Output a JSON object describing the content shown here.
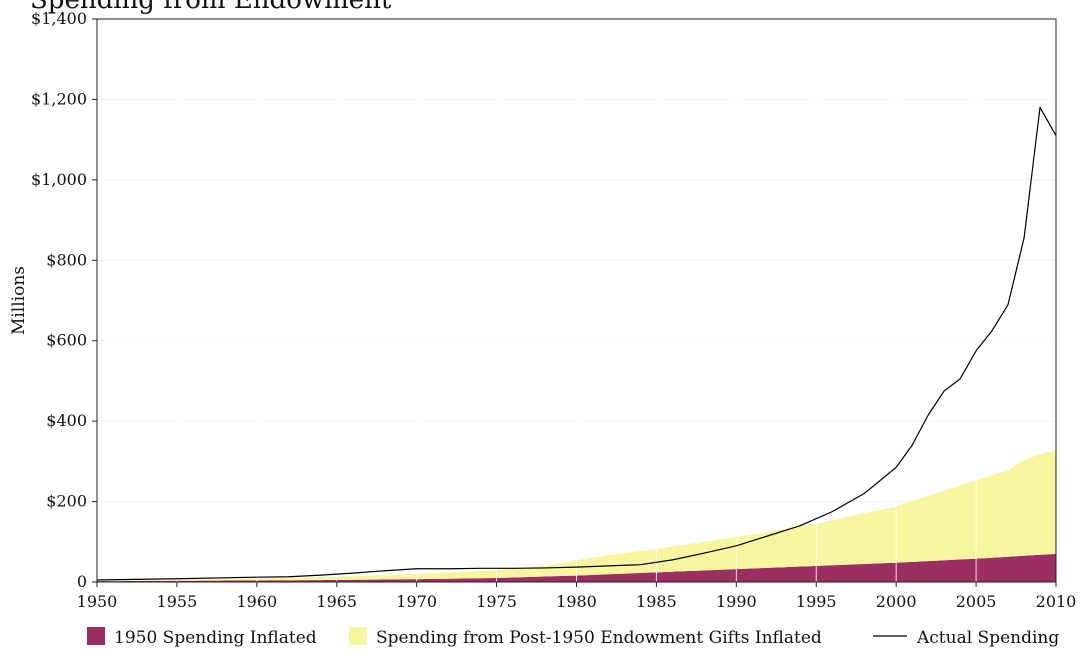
{
  "chart_data": {
    "type": "area",
    "title": "Spending from Endowment",
    "xlabel": "",
    "ylabel": "Millions",
    "xlim": [
      1950,
      2010
    ],
    "ylim": [
      0,
      1400
    ],
    "grid": true,
    "stacked": true,
    "legend_position": "bottom",
    "x_ticks": [
      {
        "value": 1950,
        "label": "1950"
      },
      {
        "value": 1955,
        "label": "1955"
      },
      {
        "value": 1960,
        "label": "1960"
      },
      {
        "value": 1965,
        "label": "1965"
      },
      {
        "value": 1970,
        "label": "1970"
      },
      {
        "value": 1975,
        "label": "1975"
      },
      {
        "value": 1980,
        "label": "1980"
      },
      {
        "value": 1985,
        "label": "1985"
      },
      {
        "value": 1990,
        "label": "1990"
      },
      {
        "value": 1995,
        "label": "1995"
      },
      {
        "value": 2000,
        "label": "2000"
      },
      {
        "value": 2005,
        "label": "2005"
      },
      {
        "value": 2010,
        "label": "2010"
      }
    ],
    "y_ticks": [
      {
        "value": 0,
        "label": "0"
      },
      {
        "value": 200,
        "label": "$200"
      },
      {
        "value": 400,
        "label": "$400"
      },
      {
        "value": 600,
        "label": "$600"
      },
      {
        "value": 800,
        "label": "$800"
      },
      {
        "value": 1000,
        "label": "$1,000"
      },
      {
        "value": 1200,
        "label": "$1,200"
      },
      {
        "value": 1400,
        "label": "$1,400"
      }
    ],
    "series": [
      {
        "name": "1950 Spending Inflated",
        "kind": "area",
        "color": "#9B2F64",
        "x": [
          1950,
          1955,
          1960,
          1965,
          1970,
          1975,
          1980,
          1985,
          1990,
          1995,
          2000,
          2005,
          2010
        ],
        "values": [
          2,
          3,
          4,
          5,
          7,
          10,
          16,
          24,
          32,
          40,
          48,
          58,
          70
        ]
      },
      {
        "name": "Spending from Post-1950 Endowment Gifts Inflated",
        "kind": "area",
        "color": "#F7F59F",
        "x": [
          1950,
          1955,
          1960,
          1965,
          1970,
          1975,
          1978,
          1980,
          1982,
          1985,
          1990,
          1995,
          2000,
          2005,
          2007,
          2008,
          2009,
          2010
        ],
        "values": [
          0,
          2,
          5,
          8,
          13,
          20,
          26,
          38,
          48,
          58,
          80,
          105,
          140,
          195,
          215,
          238,
          250,
          258
        ]
      },
      {
        "name": "Actual Spending",
        "kind": "line",
        "color": "#000000",
        "x": [
          1950,
          1955,
          1960,
          1962,
          1964,
          1966,
          1968,
          1970,
          1972,
          1974,
          1976,
          1978,
          1980,
          1982,
          1984,
          1986,
          1988,
          1990,
          1992,
          1994,
          1996,
          1998,
          2000,
          2001,
          2002,
          2003,
          2004,
          2005,
          2006,
          2007,
          2008,
          2009,
          2010
        ],
        "values": [
          5,
          8,
          12,
          13,
          17,
          22,
          28,
          33,
          33,
          34,
          34,
          35,
          37,
          40,
          43,
          55,
          72,
          90,
          115,
          140,
          175,
          220,
          285,
          340,
          415,
          475,
          505,
          575,
          625,
          690,
          855,
          1180,
          1110
        ]
      }
    ]
  }
}
